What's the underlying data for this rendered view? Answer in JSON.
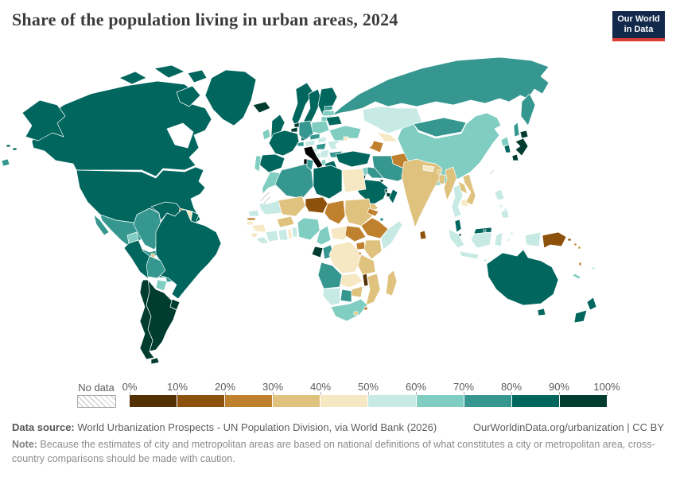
{
  "header": {
    "title": "Share of the population living in urban areas, 2024",
    "logo_line1": "Our World",
    "logo_line2": "in Data",
    "logo_bg": "#12294b",
    "logo_accent": "#dc3e32"
  },
  "legend": {
    "no_data_label": "No data",
    "tick_labels": [
      "0%",
      "10%",
      "20%",
      "30%",
      "40%",
      "50%",
      "60%",
      "70%",
      "80%",
      "90%",
      "100%"
    ],
    "bin_colors": [
      "#543005",
      "#8c510a",
      "#bf812d",
      "#dfc27d",
      "#f6e8c3",
      "#c7eae5",
      "#80cdc1",
      "#35978f",
      "#01665e",
      "#003c30"
    ]
  },
  "footer": {
    "data_source_label": "Data source:",
    "data_source_text": " World Urbanization Prospects - UN Population Division, via World Bank (2026)",
    "link_text": "OurWorldinData.org/urbanization | CC BY",
    "note_label": "Note:",
    "note_text": " Because the estimates of city and metropolitan areas are based on national definitions of what constitutes a city or metropolitan area, cross-country comparisons should be made with caution."
  },
  "map": {
    "no_data": [
      "western-sahara",
      "taiwan"
    ],
    "regions": {
      "greenland": "#01665e",
      "canada": "#01665e",
      "alaska": "#01665e",
      "aleutian-islands": "#01665e",
      "usa": "#01665e",
      "mexico": "#35978f",
      "guatemala": "#80cdc1",
      "belize": "#dfc27d",
      "honduras": "#80cdc1",
      "el-salvador": "#c7eae5",
      "nicaragua": "#80cdc1",
      "costa-rica": "#01665e",
      "panama": "#35978f",
      "cuba": "#35978f",
      "jamaica": "#c7eae5",
      "haiti": "#80cdc1",
      "dominican-republic": "#01665e",
      "puerto-rico": "#003c30",
      "bahamas": "#01665e",
      "trinidad-and-tobago": "#8c510a",
      "lesser-antilles": "#80cdc1",
      "colombia": "#35978f",
      "venezuela": "#01665e",
      "guyana": "#bf812d",
      "suriname": "#f6e8c3",
      "french-guiana": "#01665e",
      "ecuador": "#80cdc1",
      "peru": "#01665e",
      "brazil": "#01665e",
      "bolivia": "#35978f",
      "paraguay": "#80cdc1",
      "uruguay": "#003c30",
      "argentina": "#003c30",
      "chile": "#003c30",
      "iceland": "#003c30",
      "norway": "#01665e",
      "sweden": "#01665e",
      "finland": "#01665e",
      "denmark": "#01665e",
      "estonia": "#35978f",
      "latvia": "#80cdc1",
      "lithuania": "#80cdc1",
      "uk": "#01665e",
      "ireland": "#80cdc1",
      "netherlands": "#003c30",
      "belgium": "#003c30",
      "germany": "#35978f",
      "france": "#01665e",
      "spain": "#01665e",
      "portugal": "#80cdc1",
      "switzerland": "#35978f",
      "austria": "#c7eae5",
      "czechia": "#35978f",
      "slovakia": "#c7eae5",
      "poland": "#80cdc1",
      "hungary": "#35978f",
      "croatia": "#c7eae5",
      "bosnia": "#c7eae5",
      "serbia": "#c7eae5",
      "albania": "#80cdc1",
      "greece": "#01665e",
      "bulgaria": "#35978f",
      "romania": "#c7eae5",
      "moldova": "#f6e8c3",
      "ukraine": "#80cdc1",
      "belarus": "#01665e",
      "russia": "#35978f",
      "kazakhstan": "#c7eae5",
      "uzbekistan": "#f6e8c3",
      "turkmenistan": "#bf812d",
      "kyrgyzstan": "#dfc27d",
      "tajikistan": "#bf812d",
      "afghanistan": "#bf812d",
      "pakistan": "#dfc27d",
      "turkey": "#01665e",
      "cyprus": "#80cdc1",
      "syria": "#80cdc1",
      "lebanon": "#01665e",
      "israel": "#003c30",
      "jordan": "#003c30",
      "iraq": "#35978f",
      "iran": "#35978f",
      "kuwait": "#003c30",
      "saudi-arabia": "#01665e",
      "qatar": "#003c30",
      "uae": "#003c30",
      "oman": "#01665e",
      "yemen": "#dfc27d",
      "morocco": "#80cdc1",
      "algeria": "#35978f",
      "tunisia": "#35978f",
      "libya": "#01665e",
      "egypt": "#f6e8c3",
      "mauritania": "#c7eae5",
      "mali": "#dfc27d",
      "niger": "#8c510a",
      "chad": "#bf812d",
      "sudan": "#dfc27d",
      "eritrea": "#bf812d",
      "ethiopia": "#bf812d",
      "djibouti": "#35978f",
      "somalia": "#c7eae5",
      "senegal": "#c7eae5",
      "gambia": "#bf812d",
      "guinea-bissau": "#f6e8c3",
      "guinea": "#f6e8c3",
      "sierra-leone": "#f6e8c3",
      "liberia": "#c7eae5",
      "cote-divoire": "#c7eae5",
      "ghana": "#c7eae5",
      "togo": "#f6e8c3",
      "benin": "#c7eae5",
      "burkina-faso": "#dfc27d",
      "nigeria": "#80cdc1",
      "cameroon": "#80cdc1",
      "central-african-republic": "#f6e8c3",
      "south-sudan": "#bf812d",
      "uganda": "#bf812d",
      "kenya": "#dfc27d",
      "rwanda": "#bf812d",
      "burundi": "#8c510a",
      "gabon": "#003c30",
      "congo": "#35978f",
      "drc": "#f6e8c3",
      "tanzania": "#dfc27d",
      "angola": "#35978f",
      "zambia": "#f6e8c3",
      "malawi": "#543005",
      "mozambique": "#dfc27d",
      "zimbabwe": "#dfc27d",
      "botswana": "#35978f",
      "namibia": "#c7eae5",
      "south-africa": "#80cdc1",
      "lesotho": "#dfc27d",
      "eswatini": "#bf812d",
      "madagascar": "#dfc27d",
      "mongolia": "#35978f",
      "china": "#80cdc1",
      "north-korea": "#80cdc1",
      "south-korea": "#01665e",
      "japan": "#003c30",
      "india": "#dfc27d",
      "nepal": "#f6e8c3",
      "bhutan": "#dfc27d",
      "bangladesh": "#dfc27d",
      "sri-lanka": "#8c510a",
      "myanmar": "#dfc27d",
      "thailand": "#c7eae5",
      "laos": "#dfc27d",
      "cambodia": "#f6e8c3",
      "vietnam": "#dfc27d",
      "malaysia": "#01665e",
      "singapore": "#003c30",
      "brunei": "#01665e",
      "indonesia": "#c7eae5",
      "philippines": "#c7eae5",
      "timor-leste": "#dfc27d",
      "papua-new-guinea": "#8c510a",
      "solomon-islands": "#bf812d",
      "vanuatu": "#bf812d",
      "new-caledonia": "#80cdc1",
      "fiji": "#c7eae5",
      "australia": "#01665e",
      "new-zealand": "#01665e"
    }
  }
}
